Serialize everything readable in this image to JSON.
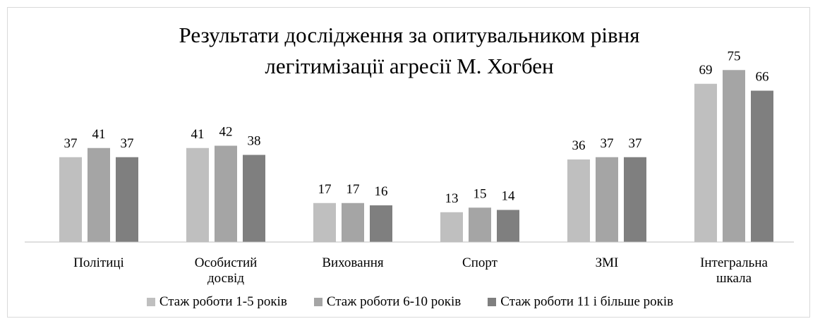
{
  "chart_data": {
    "type": "bar",
    "title": "Результати дослідження за опитувальником рівня легітимізації агресії М. Хогбен",
    "categories": [
      "Політиці",
      "Особистий досвід",
      "Виховання",
      "Спорт",
      "ЗМІ",
      "Інтегральна шкала"
    ],
    "series": [
      {
        "name": "Стаж роботи 1-5 років",
        "color": "#bfbfbf",
        "values": [
          37,
          41,
          17,
          13,
          36,
          69
        ]
      },
      {
        "name": "Стаж роботи 6-10 років",
        "color": "#a5a5a5",
        "values": [
          41,
          42,
          17,
          15,
          37,
          75
        ]
      },
      {
        "name": "Стаж роботи 11 і більше років",
        "color": "#7f7f7f",
        "values": [
          37,
          38,
          16,
          14,
          37,
          66
        ]
      }
    ],
    "ylim": [
      0,
      80
    ],
    "legend": "bottom"
  }
}
